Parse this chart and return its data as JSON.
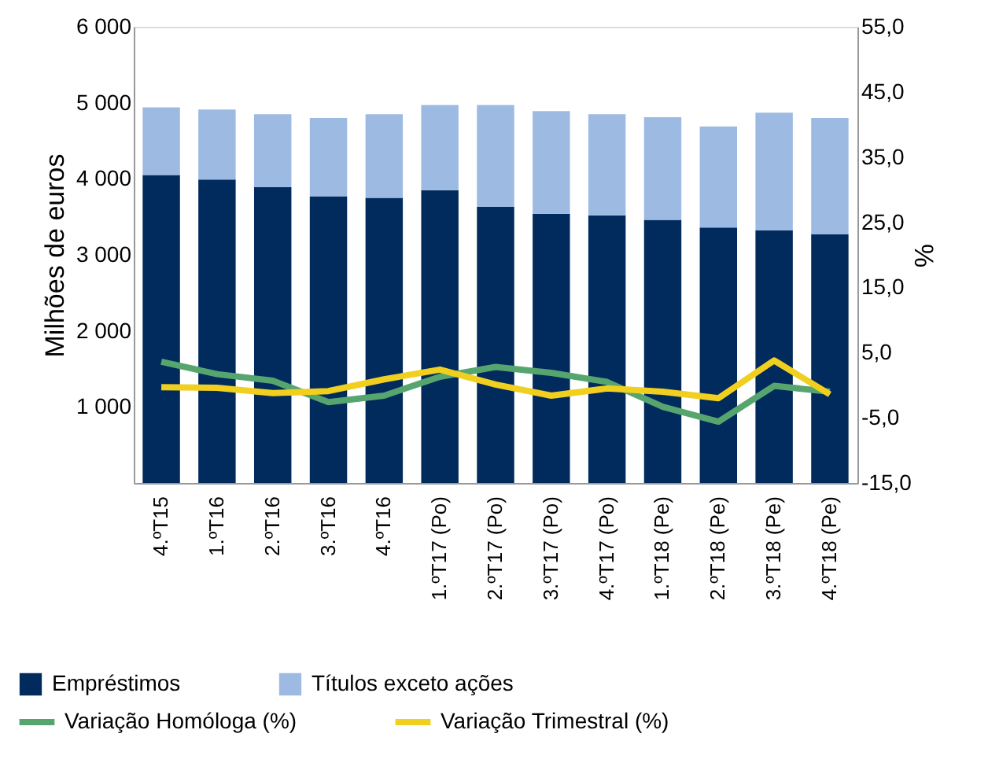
{
  "chart_data": {
    "type": "bar",
    "stacked": true,
    "ylabel": "Milhões de euros",
    "y2label": "%",
    "categories": [
      "4.ºT15",
      "1.ºT16",
      "2.ºT16",
      "3.ºT16",
      "4.ºT16",
      "1.ºT17 (Po)",
      "2.ºT17 (Po)",
      "3.ºT17 (Po)",
      "4.ºT17 (Po)",
      "1.ºT18 (Pe)",
      "2.ºT18 (Pe)",
      "3.ºT18 (Pe)",
      "4.ºT18 (Pe)"
    ],
    "series": [
      {
        "name": "Empréstimos",
        "color": "#002b5c",
        "values": [
          4050,
          3990,
          3890,
          3770,
          3750,
          3850,
          3630,
          3540,
          3520,
          3460,
          3360,
          3320,
          3270
        ]
      },
      {
        "name": "Títulos exceto ações",
        "color": "#9dbbe2",
        "values": [
          890,
          920,
          960,
          1030,
          1100,
          1120,
          1340,
          1350,
          1330,
          1350,
          1330,
          1550,
          1530
        ]
      },
      {
        "name": "Variação Homóloga (%)",
        "type": "line",
        "axis": "y2",
        "color": "#56a56f",
        "values": [
          3.6,
          1.7,
          0.7,
          -2.6,
          -1.6,
          1.3,
          2.8,
          1.9,
          0.5,
          -3.3,
          -5.6,
          -0.1,
          -1.0
        ]
      },
      {
        "name": "Variação Trimestral (%)",
        "type": "line",
        "axis": "y2",
        "color": "#f0cf1f",
        "values": [
          -0.3,
          -0.4,
          -1.2,
          -0.9,
          0.9,
          2.4,
          0.1,
          -1.6,
          -0.5,
          -1.0,
          -2.0,
          3.8,
          -1.4
        ]
      }
    ],
    "ylim": [
      0,
      6000
    ],
    "yticks": [
      {
        "value": 1000,
        "label": "1 000"
      },
      {
        "value": 2000,
        "label": "2 000"
      },
      {
        "value": 3000,
        "label": "3 000"
      },
      {
        "value": 4000,
        "label": "4 000"
      },
      {
        "value": 5000,
        "label": "5 000"
      },
      {
        "value": 6000,
        "label": "6 000"
      }
    ],
    "y2lim": [
      -15,
      55
    ],
    "y2ticks": [
      {
        "value": -15,
        "label": "-15,0"
      },
      {
        "value": -5,
        "label": "-5,0"
      },
      {
        "value": 5,
        "label": "5,0"
      },
      {
        "value": 15,
        "label": "15,0"
      },
      {
        "value": 25,
        "label": "25,0"
      },
      {
        "value": 35,
        "label": "35,0"
      },
      {
        "value": 45,
        "label": "45,0"
      },
      {
        "value": 55,
        "label": "55,0"
      }
    ],
    "grid": false,
    "legend": "bottom",
    "marker": "none",
    "line_style": "solid"
  }
}
